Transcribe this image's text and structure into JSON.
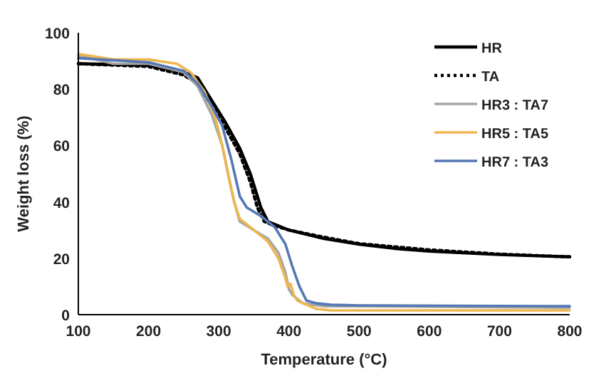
{
  "chart_data": {
    "type": "line",
    "xlabel": "Temperature (°C)",
    "ylabel": "Weight loss (%)",
    "xlim": [
      100,
      800
    ],
    "xticks": [
      100,
      200,
      300,
      400,
      500,
      600,
      700,
      800
    ],
    "ylim": [
      0,
      100
    ],
    "yticks": [
      0,
      20,
      40,
      60,
      80,
      100
    ],
    "legend": "top right",
    "series": [
      {
        "name": "HR",
        "color": "#000000",
        "line_style": "solid",
        "x": [
          100,
          200,
          250,
          270,
          290,
          310,
          330,
          345,
          360,
          370,
          380,
          400,
          450,
          500,
          550,
          600,
          700,
          800
        ],
        "values": [
          89,
          88.5,
          86,
          84,
          76,
          68,
          59,
          50,
          38,
          33,
          32,
          30,
          27,
          25,
          23.5,
          22.5,
          21.3,
          20.5
        ]
      },
      {
        "name": "TA",
        "color": "#000000",
        "line_style": "dotted",
        "x": [
          100,
          200,
          250,
          270,
          290,
          310,
          330,
          345,
          355,
          365,
          380,
          400,
          450,
          500,
          600,
          700,
          800
        ],
        "values": [
          89,
          88,
          85,
          82,
          74,
          66,
          57,
          47,
          38,
          33,
          31.5,
          30,
          27.5,
          25.2,
          23,
          21.5,
          20.5
        ]
      },
      {
        "name": "HR3 : TA7",
        "color": "#a5a5a5",
        "line_style": "solid",
        "x": [
          100,
          150,
          200,
          250,
          270,
          290,
          305,
          315,
          322,
          330,
          350,
          370,
          385,
          395,
          400,
          405,
          420,
          450,
          500,
          800
        ],
        "values": [
          92,
          89,
          89,
          86,
          81,
          71,
          60,
          48,
          40,
          33,
          30,
          27,
          22,
          15,
          9,
          7,
          4,
          3,
          3,
          2.5
        ]
      },
      {
        "name": "HR5 : TA5",
        "color": "#eeb650",
        "line_style": "solid",
        "x": [
          100,
          150,
          200,
          240,
          260,
          280,
          295,
          305,
          315,
          322,
          330,
          350,
          370,
          385,
          395,
          398,
          402,
          407,
          412,
          420,
          440,
          460,
          800
        ],
        "values": [
          92.5,
          90.5,
          90.5,
          89,
          86,
          79,
          70,
          60,
          48,
          40,
          34,
          30,
          26,
          20,
          13,
          10,
          11,
          7,
          5,
          4,
          2,
          1.5,
          1.5
        ]
      },
      {
        "name": "HR7 : TA3",
        "color": "#5578b5",
        "line_style": "solid",
        "x": [
          100,
          200,
          250,
          270,
          290,
          305,
          318,
          330,
          340,
          360,
          380,
          395,
          405,
          415,
          425,
          440,
          460,
          500,
          800
        ],
        "values": [
          91,
          89.5,
          86.5,
          82,
          74,
          67,
          55,
          42,
          38,
          35,
          31,
          25,
          17,
          10,
          5,
          4,
          3.5,
          3.3,
          3
        ]
      }
    ]
  }
}
